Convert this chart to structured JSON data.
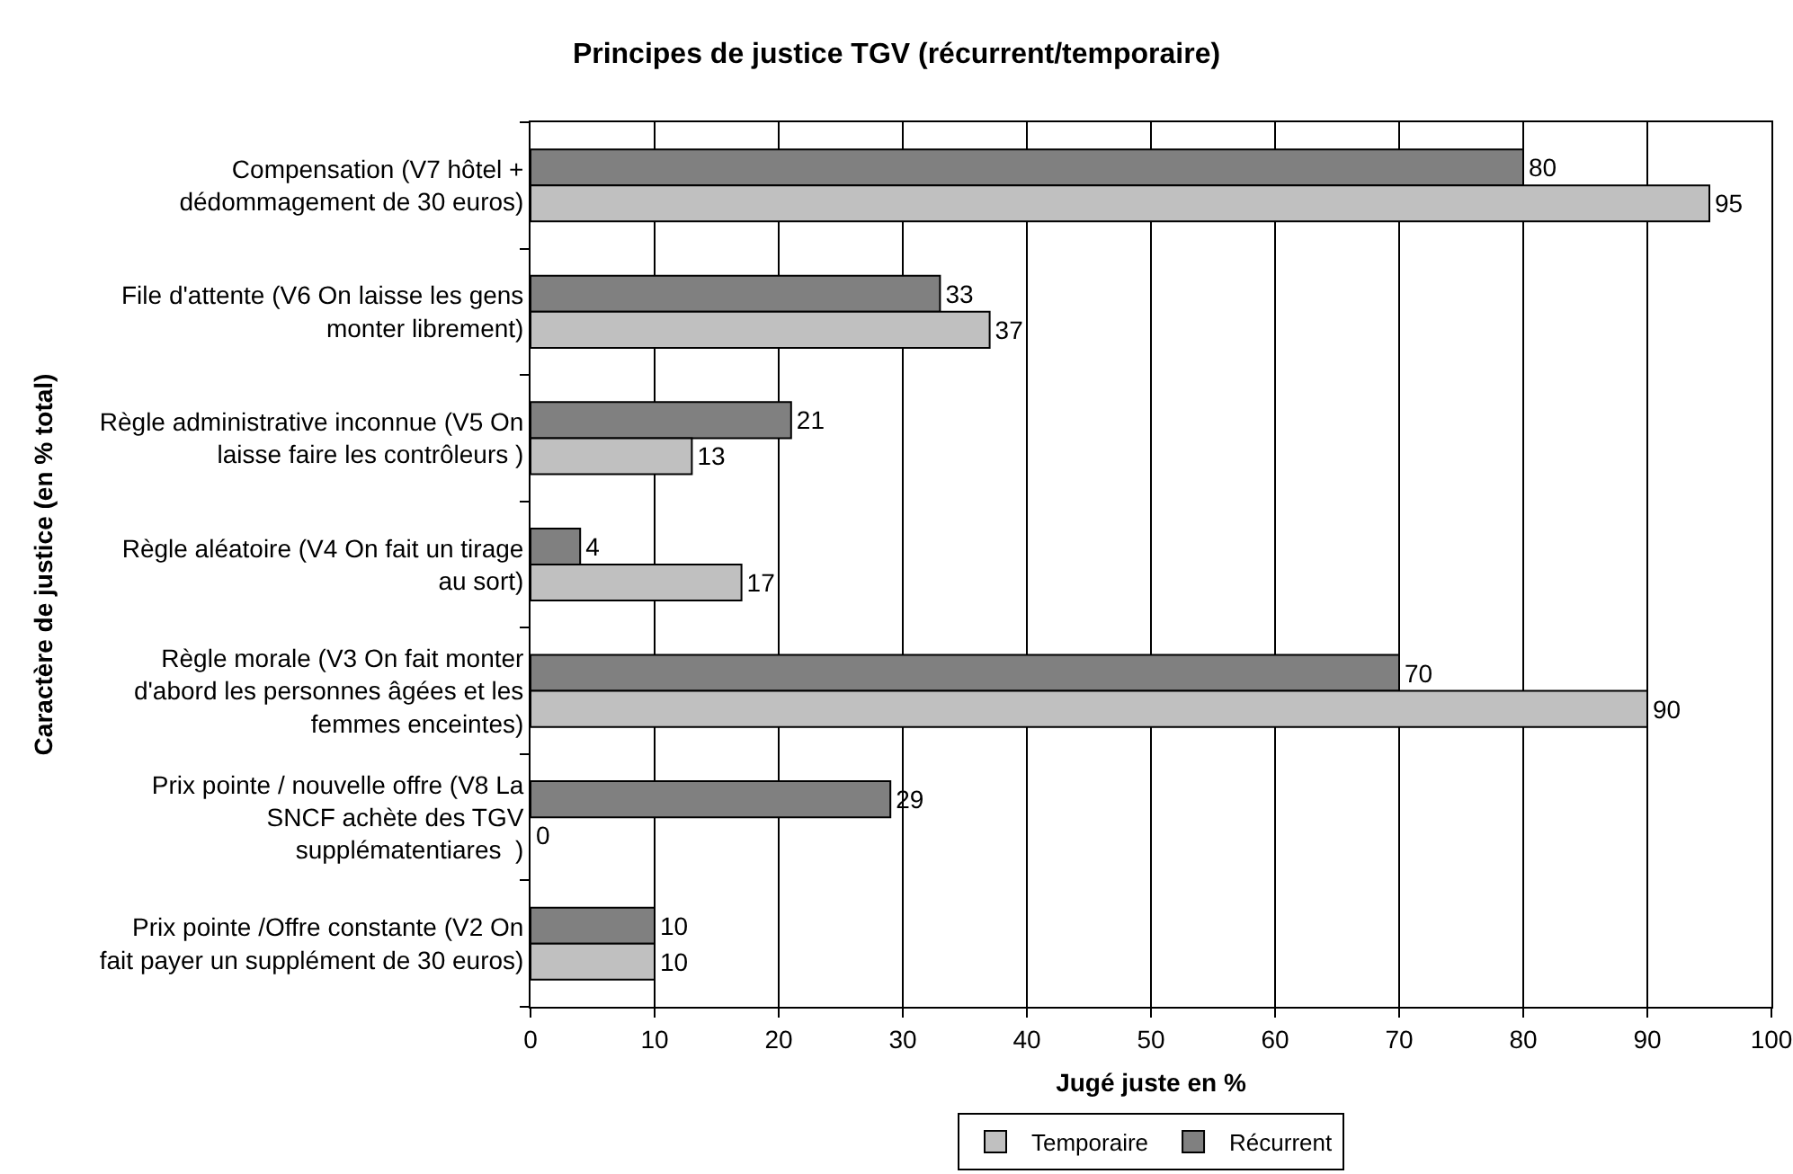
{
  "chart_data": {
    "type": "bar",
    "orientation": "horizontal",
    "title": "Principes de justice TGV (récurrent/temporaire)",
    "xlabel": "Jugé juste en %",
    "ylabel": "Caractère de justice (en % total)",
    "categories": [
      "Compensation (V7 hôtel + dédommagement de 30 euros)",
      "File d'attente (V6 On laisse les gens monter librement)",
      "Règle administrative inconnue (V5 On laisse faire les contrôleurs )",
      "Règle aléatoire (V4 On fait un tirage au sort)",
      "Règle morale (V3 On fait monter d'abord les personnes âgées et les femmes enceintes)",
      "Prix pointe / nouvelle offre (V8 La SNCF achète des TGV supplématentiares  )",
      "Prix pointe /Offre constante (V2 On fait payer un supplément de 30 euros)"
    ],
    "series": [
      {
        "name": "Temporaire",
        "color": "#c0c0c0",
        "values": [
          95,
          37,
          13,
          17,
          90,
          0,
          10
        ]
      },
      {
        "name": "Récurrent",
        "color": "#808080",
        "values": [
          80,
          33,
          21,
          4,
          70,
          29,
          10
        ]
      }
    ],
    "xlim": [
      0,
      100
    ],
    "xticks": [
      0,
      10,
      20,
      30,
      40,
      50,
      60,
      70,
      80,
      90,
      100
    ],
    "grid": "x",
    "legend": "bottom",
    "data_labels": true
  }
}
